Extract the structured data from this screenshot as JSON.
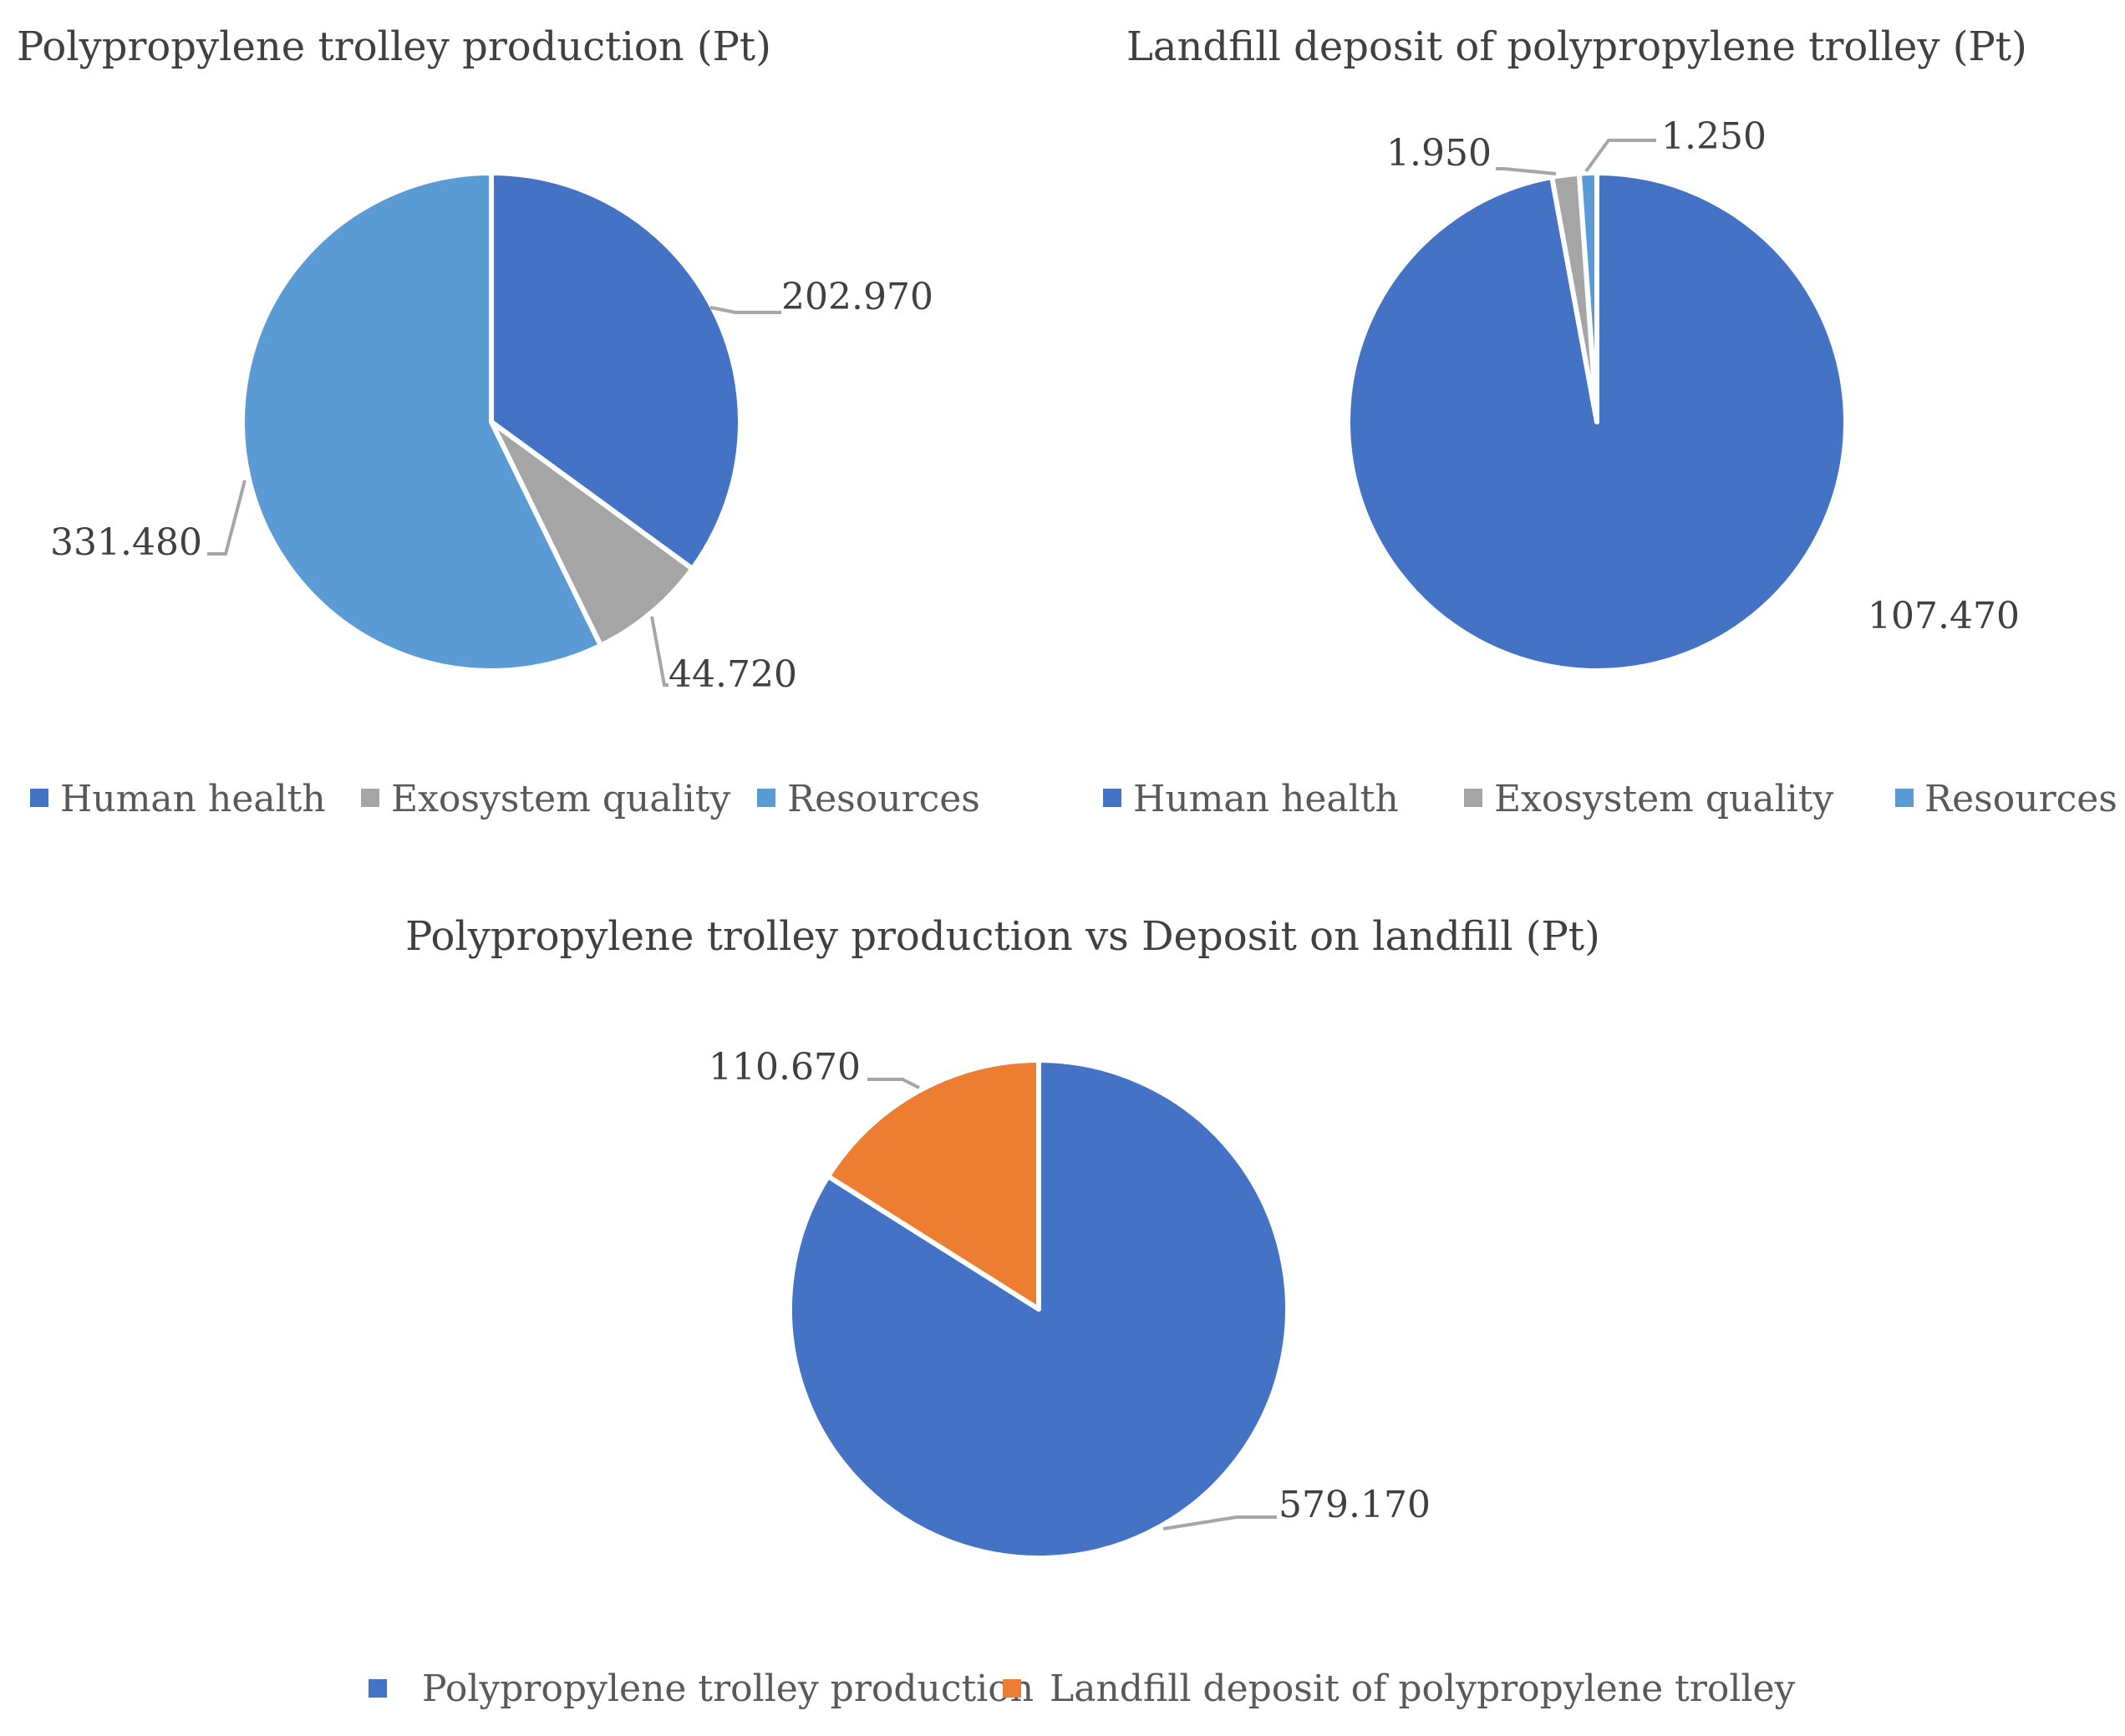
{
  "chart_data": [
    {
      "type": "pie",
      "title": "Polypropylene trolley production (Pt)",
      "categories": [
        "Human health",
        "Exosystem quality",
        "Resources"
      ],
      "values": [
        202.97,
        44.72,
        331.48
      ],
      "value_labels": [
        "202.970",
        "44.720",
        "331.480"
      ],
      "colors": [
        "#4472C4",
        "#A5A5A5",
        "#5B9BD5"
      ],
      "legend": [
        "Human health",
        "Exosystem quality",
        "Resources"
      ],
      "legend_position": "bottom"
    },
    {
      "type": "pie",
      "title": "Landfill deposit of polypropylene trolley (Pt)",
      "categories": [
        "Human health",
        "Exosystem quality",
        "Resources"
      ],
      "values": [
        107.47,
        1.95,
        1.25
      ],
      "value_labels": [
        "107.470",
        "1.950",
        "1.250"
      ],
      "colors": [
        "#4472C4",
        "#A5A5A5",
        "#5B9BD5"
      ],
      "legend": [
        "Human health",
        "Exosystem quality",
        "Resources"
      ],
      "legend_position": "bottom"
    },
    {
      "type": "pie",
      "title": "Polypropylene trolley production vs Deposit on landfill (Pt)",
      "categories": [
        "Polypropylene trolley production",
        "Landfill deposit of polypropylene trolley"
      ],
      "values": [
        579.17,
        110.67
      ],
      "value_labels": [
        "579.170",
        "110.670"
      ],
      "colors": [
        "#4472C4",
        "#ED7D31"
      ],
      "legend": [
        "Polypropylene trolley production",
        "Landfill deposit of polypropylene trolley"
      ],
      "legend_position": "bottom"
    }
  ]
}
